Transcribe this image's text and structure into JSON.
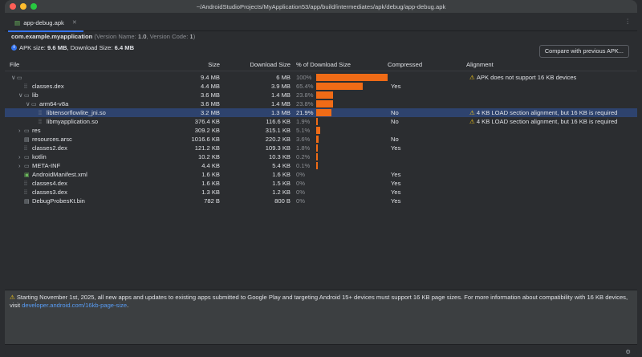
{
  "window": {
    "title": "~/AndroidStudioProjects/MyApplication53/app/build/intermediates/apk/debug/app-debug.apk",
    "tab_label": "app-debug.apk",
    "more_label": "⋮"
  },
  "info": {
    "package": "com.example.myapplication",
    "version_prefix": "(Version Name: ",
    "version_name": "1.0",
    "version_code_prefix": ", Version Code: ",
    "version_code": "1",
    "version_suffix": ")",
    "apk_size_prefix": "APK size: ",
    "apk_size": "9.6 MB",
    "download_size_prefix": ", Download Size: ",
    "download_size": "6.4 MB",
    "compare_label": "Compare with previous APK..."
  },
  "columns": {
    "file": "File",
    "size": "Size",
    "download_size": "Download Size",
    "pct": "% of Download Size",
    "compressed": "Compressed",
    "alignment": "Alignment"
  },
  "rows": [
    {
      "name": "",
      "icon": "folder-icon",
      "expand": "∨",
      "size": "9.4 MB",
      "dl": "6 MB",
      "pct": "100%",
      "pct_val": 100,
      "compressed": "",
      "alignment": "APK does not support 16 KB devices",
      "warn": true
    },
    {
      "name": "classes.dex",
      "icon": "dex-file-icon",
      "expand": "",
      "size": "4.4 MB",
      "dl": "3.9 MB",
      "pct": "65.4%",
      "pct_val": 65.4,
      "compressed": "Yes",
      "alignment": "",
      "warn": false
    },
    {
      "name": "lib",
      "icon": "folder-icon",
      "expand": "∨",
      "size": "3.6 MB",
      "dl": "1.4 MB",
      "pct": "23.8%",
      "pct_val": 23.8,
      "compressed": "",
      "alignment": "",
      "warn": false
    },
    {
      "name": "arm64-v8a",
      "icon": "folder-icon",
      "expand": "∨",
      "size": "3.6 MB",
      "dl": "1.4 MB",
      "pct": "23.8%",
      "pct_val": 23.8,
      "compressed": "",
      "alignment": "",
      "warn": false
    },
    {
      "name": "libtensorflowlite_jni.so",
      "icon": "binary-file-icon",
      "expand": "",
      "size": "3.2 MB",
      "dl": "1.3 MB",
      "pct": "21.9%",
      "pct_val": 21.9,
      "compressed": "No",
      "alignment": "4 KB LOAD section alignment, but 16 KB is required",
      "warn": true,
      "selected": true
    },
    {
      "name": "libmyapplication.so",
      "icon": "binary-file-icon",
      "expand": "",
      "size": "376.4 KB",
      "dl": "116.6 KB",
      "pct": "1.9%",
      "pct_val": 1.9,
      "compressed": "No",
      "alignment": "4 KB LOAD section alignment, but 16 KB is required",
      "warn": true
    },
    {
      "name": "res",
      "icon": "folder-icon",
      "expand": "›",
      "size": "309.2 KB",
      "dl": "315.1 KB",
      "pct": "5.1%",
      "pct_val": 5.1,
      "compressed": "",
      "alignment": "",
      "warn": false
    },
    {
      "name": "resources.arsc",
      "icon": "file-icon",
      "expand": "",
      "size": "1016.6 KB",
      "dl": "220.2 KB",
      "pct": "3.6%",
      "pct_val": 3.6,
      "compressed": "No",
      "alignment": "",
      "warn": false
    },
    {
      "name": "classes2.dex",
      "icon": "dex-file-icon",
      "expand": "",
      "size": "121.2 KB",
      "dl": "109.3 KB",
      "pct": "1.8%",
      "pct_val": 1.8,
      "compressed": "Yes",
      "alignment": "",
      "warn": false
    },
    {
      "name": "kotlin",
      "icon": "folder-icon",
      "expand": "›",
      "size": "10.2 KB",
      "dl": "10.3 KB",
      "pct": "0.2%",
      "pct_val": 0.2,
      "compressed": "",
      "alignment": "",
      "warn": false
    },
    {
      "name": "META-INF",
      "icon": "folder-icon",
      "expand": "›",
      "size": "4.4 KB",
      "dl": "5.4 KB",
      "pct": "0.1%",
      "pct_val": 0.1,
      "compressed": "",
      "alignment": "",
      "warn": false
    },
    {
      "name": "AndroidManifest.xml",
      "icon": "manifest-file-icon",
      "expand": "",
      "size": "1.6 KB",
      "dl": "1.6 KB",
      "pct": "0%",
      "pct_val": 0,
      "compressed": "Yes",
      "alignment": "",
      "warn": false
    },
    {
      "name": "classes4.dex",
      "icon": "dex-file-icon",
      "expand": "",
      "size": "1.6 KB",
      "dl": "1.5 KB",
      "pct": "0%",
      "pct_val": 0,
      "compressed": "Yes",
      "alignment": "",
      "warn": false
    },
    {
      "name": "classes3.dex",
      "icon": "dex-file-icon",
      "expand": "",
      "size": "1.3 KB",
      "dl": "1.2 KB",
      "pct": "0%",
      "pct_val": 0,
      "compressed": "Yes",
      "alignment": "",
      "warn": false
    },
    {
      "name": "DebugProbesKt.bin",
      "icon": "file-icon",
      "expand": "",
      "size": "782 B",
      "dl": "800 B",
      "pct": "0%",
      "pct_val": 0,
      "compressed": "Yes",
      "alignment": "",
      "warn": false
    }
  ],
  "footer": {
    "message": "Starting November 1st, 2025, all new apps and updates to existing apps submitted to Google Play and targeting Android 15+ devices must support 16 KB page sizes. For more information about compatibility with 16 KB devices, visit ",
    "link": "developer.android.com/16kb-page-size",
    "period": "."
  },
  "colors": {
    "bar": "#f06b16",
    "selection": "#2e436e",
    "warning": "#f0c419",
    "link": "#589df6"
  }
}
